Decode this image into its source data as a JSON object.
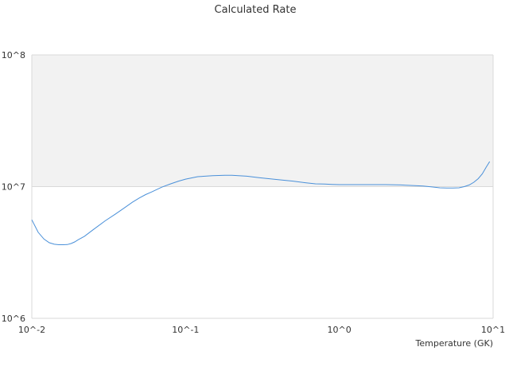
{
  "chart_data": {
    "type": "line",
    "title": "Calculated Rate",
    "xlabel": "Temperature (GK)",
    "ylabel": "",
    "x_scale": "log",
    "y_scale": "log",
    "xlim": [
      0.01,
      10
    ],
    "ylim": [
      1000000,
      100000000
    ],
    "x_ticks": [
      "10^-2",
      "10^-1",
      "10^0",
      "10^1"
    ],
    "y_ticks": [
      "10^6",
      "10^7",
      "10^8"
    ],
    "grid": true,
    "legend": "none",
    "colors": {
      "line": "#4a90d9",
      "band": "#f2f2f2",
      "axis": "#d9d9d9"
    },
    "series": [
      {
        "x": [
          0.01,
          0.011,
          0.012,
          0.013,
          0.014,
          0.015,
          0.016,
          0.017,
          0.018,
          0.019,
          0.02,
          0.022,
          0.025,
          0.03,
          0.035,
          0.04,
          0.045,
          0.05,
          0.055,
          0.06,
          0.07,
          0.08,
          0.09,
          0.1,
          0.12,
          0.15,
          0.18,
          0.2,
          0.25,
          0.3,
          0.4,
          0.5,
          0.6,
          0.7,
          0.8,
          0.9,
          1.0,
          1.2,
          1.5,
          2.0,
          2.5,
          3.0,
          3.5,
          4.0,
          4.5,
          5.0,
          5.5,
          6.0,
          6.5,
          7.0,
          7.5,
          8.0,
          8.5,
          9.0,
          9.5
        ],
        "values": [
          5600000,
          4500000,
          4000000,
          3750000,
          3650000,
          3620000,
          3620000,
          3630000,
          3700000,
          3800000,
          3950000,
          4200000,
          4700000,
          5500000,
          6200000,
          6900000,
          7600000,
          8200000,
          8700000,
          9100000,
          9900000,
          10500000,
          11000000,
          11400000,
          11900000,
          12100000,
          12200000,
          12200000,
          12000000,
          11700000,
          11300000,
          11000000,
          10700000,
          10500000,
          10450000,
          10400000,
          10350000,
          10350000,
          10350000,
          10350000,
          10300000,
          10200000,
          10100000,
          9950000,
          9800000,
          9750000,
          9750000,
          9800000,
          10000000,
          10300000,
          10800000,
          11500000,
          12500000,
          14000000,
          15500000
        ]
      }
    ]
  }
}
